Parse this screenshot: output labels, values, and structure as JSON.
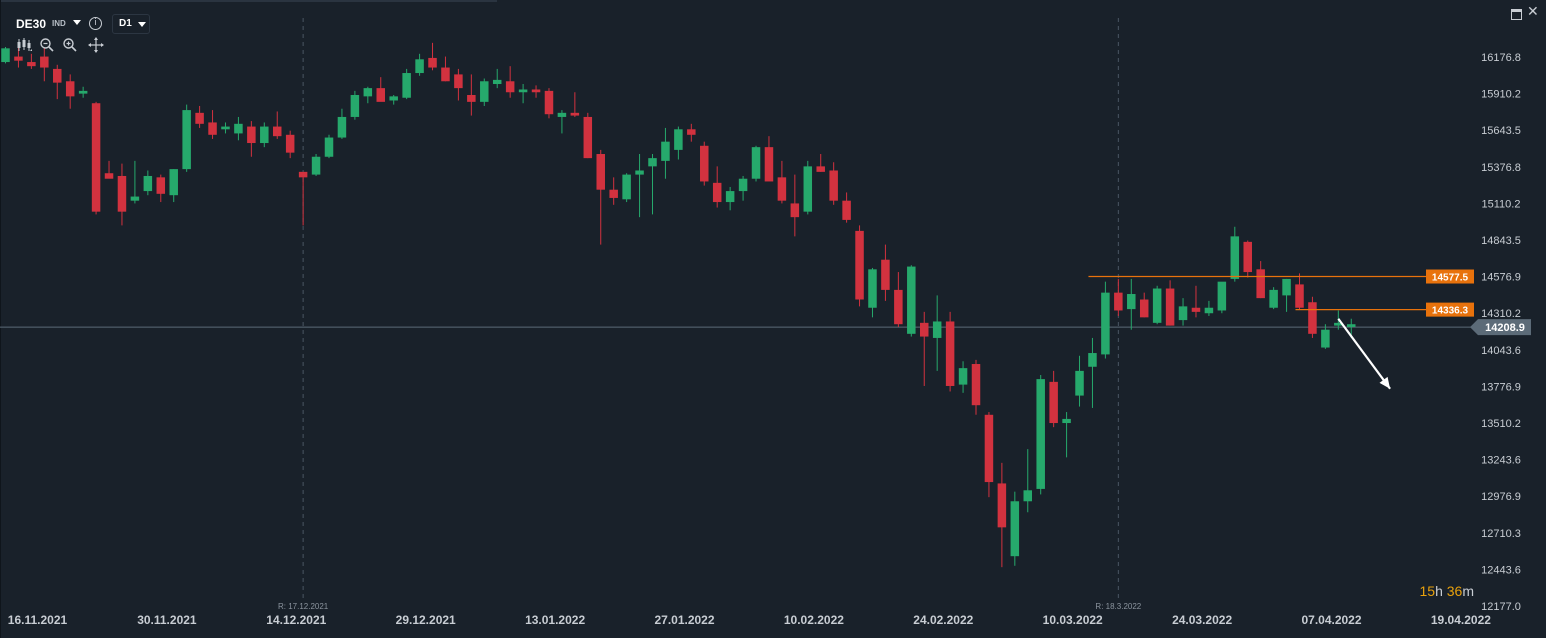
{
  "toolbar": {
    "symbol": "DE30",
    "market": "IND",
    "timeframe": "D1",
    "icons": [
      "chevron-down-icon",
      "info-icon",
      "candles-icon",
      "zoom-out-icon",
      "zoom-in-icon",
      "crosshair-move-icon",
      "window-icon",
      "close-icon"
    ]
  },
  "countdown": {
    "hours": "15",
    "h_unit": "h",
    "minutes": "36",
    "m_unit": "m"
  },
  "colors": {
    "background": "#19212a",
    "bull": "#26a96c",
    "bear": "#d2323f",
    "level": "#e8720c",
    "current": "#5c6b78",
    "text": "#c8cdd3",
    "countdown": "#e8a10c"
  },
  "chart_data": {
    "type": "candlestick",
    "symbol": "DE30",
    "timeframe": "D1",
    "ylim": [
      12177.0,
      16300.0
    ],
    "y_ticks": [
      "16176.8",
      "15910.2",
      "15643.5",
      "15376.8",
      "15110.2",
      "14843.5",
      "14576.9",
      "14310.2",
      "14043.6",
      "13776.9",
      "13510.2",
      "13243.6",
      "12976.9",
      "12710.3",
      "12443.6",
      "12177.0"
    ],
    "x_tick_labels": [
      "16.11.2021",
      "30.11.2021",
      "14.12.2021",
      "29.12.2021",
      "13.01.2022",
      "27.01.2022",
      "10.02.2022",
      "24.02.2022",
      "10.03.2022",
      "24.03.2022",
      "07.04.2022",
      "19.04.2022"
    ],
    "x_tick_index": [
      0,
      10,
      20,
      30,
      40,
      50,
      60,
      70,
      80,
      90,
      100,
      110
    ],
    "separators": [
      {
        "index": 23,
        "label": "R: 17.12.2021"
      },
      {
        "index": 86,
        "label": "R: 18.3.2022"
      }
    ],
    "levels": [
      {
        "value": 14577.5,
        "label": "14577.5",
        "from_index": 84
      },
      {
        "value": 14336.3,
        "label": "14336.3",
        "from_index": 100
      }
    ],
    "current_price": {
      "value": 14208.9,
      "label": "14208.9"
    },
    "arrow": {
      "from": {
        "index": 103,
        "value": 14270
      },
      "to": {
        "index": 107,
        "value": 13760
      }
    },
    "candles": [
      {
        "o": 16140,
        "h": 16250,
        "l": 16130,
        "c": 16240
      },
      {
        "o": 16180,
        "h": 16260,
        "l": 16100,
        "c": 16150
      },
      {
        "o": 16140,
        "h": 16200,
        "l": 16090,
        "c": 16110
      },
      {
        "o": 16180,
        "h": 16240,
        "l": 16000,
        "c": 16100
      },
      {
        "o": 16090,
        "h": 16120,
        "l": 15870,
        "c": 15990
      },
      {
        "o": 16000,
        "h": 16050,
        "l": 15800,
        "c": 15890
      },
      {
        "o": 15910,
        "h": 15960,
        "l": 15880,
        "c": 15930
      },
      {
        "o": 15840,
        "h": 15850,
        "l": 15030,
        "c": 15050
      },
      {
        "o": 15330,
        "h": 15420,
        "l": 15300,
        "c": 15290
      },
      {
        "o": 15310,
        "h": 15400,
        "l": 14950,
        "c": 15050
      },
      {
        "o": 15130,
        "h": 15420,
        "l": 15110,
        "c": 15160
      },
      {
        "o": 15200,
        "h": 15350,
        "l": 15170,
        "c": 15310
      },
      {
        "o": 15300,
        "h": 15320,
        "l": 15120,
        "c": 15180
      },
      {
        "o": 15170,
        "h": 15360,
        "l": 15120,
        "c": 15360
      },
      {
        "o": 15360,
        "h": 15830,
        "l": 15340,
        "c": 15790
      },
      {
        "o": 15770,
        "h": 15820,
        "l": 15660,
        "c": 15690
      },
      {
        "o": 15700,
        "h": 15790,
        "l": 15580,
        "c": 15610
      },
      {
        "o": 15650,
        "h": 15700,
        "l": 15620,
        "c": 15670
      },
      {
        "o": 15620,
        "h": 15740,
        "l": 15570,
        "c": 15690
      },
      {
        "o": 15670,
        "h": 15710,
        "l": 15450,
        "c": 15550
      },
      {
        "o": 15550,
        "h": 15700,
        "l": 15520,
        "c": 15670
      },
      {
        "o": 15670,
        "h": 15780,
        "l": 15580,
        "c": 15600
      },
      {
        "o": 15610,
        "h": 15640,
        "l": 15440,
        "c": 15480
      },
      {
        "o": 15340,
        "h": 15340,
        "l": 14950,
        "c": 15300
      },
      {
        "o": 15320,
        "h": 15470,
        "l": 15310,
        "c": 15450
      },
      {
        "o": 15450,
        "h": 15610,
        "l": 15440,
        "c": 15590
      },
      {
        "o": 15590,
        "h": 15800,
        "l": 15580,
        "c": 15740
      },
      {
        "o": 15740,
        "h": 15930,
        "l": 15720,
        "c": 15900
      },
      {
        "o": 15890,
        "h": 15960,
        "l": 15840,
        "c": 15950
      },
      {
        "o": 15950,
        "h": 16030,
        "l": 15860,
        "c": 15850
      },
      {
        "o": 15860,
        "h": 15900,
        "l": 15830,
        "c": 15890
      },
      {
        "o": 15880,
        "h": 16090,
        "l": 15870,
        "c": 16060
      },
      {
        "o": 16060,
        "h": 16200,
        "l": 16040,
        "c": 16160
      },
      {
        "o": 16170,
        "h": 16280,
        "l": 16080,
        "c": 16100
      },
      {
        "o": 16100,
        "h": 16180,
        "l": 16000,
        "c": 16000
      },
      {
        "o": 16050,
        "h": 16090,
        "l": 15860,
        "c": 15950
      },
      {
        "o": 15900,
        "h": 16050,
        "l": 15750,
        "c": 15850
      },
      {
        "o": 15850,
        "h": 16020,
        "l": 15820,
        "c": 16000
      },
      {
        "o": 15980,
        "h": 16090,
        "l": 15950,
        "c": 16010
      },
      {
        "o": 16000,
        "h": 16110,
        "l": 15880,
        "c": 15920
      },
      {
        "o": 15920,
        "h": 15980,
        "l": 15840,
        "c": 15940
      },
      {
        "o": 15940,
        "h": 15970,
        "l": 15880,
        "c": 15920
      },
      {
        "o": 15930,
        "h": 15950,
        "l": 15730,
        "c": 15760
      },
      {
        "o": 15740,
        "h": 15790,
        "l": 15620,
        "c": 15770
      },
      {
        "o": 15770,
        "h": 15920,
        "l": 15740,
        "c": 15750
      },
      {
        "o": 15740,
        "h": 15770,
        "l": 15440,
        "c": 15440
      },
      {
        "o": 15470,
        "h": 15500,
        "l": 14810,
        "c": 15210
      },
      {
        "o": 15210,
        "h": 15300,
        "l": 15100,
        "c": 15150
      },
      {
        "o": 15140,
        "h": 15330,
        "l": 15120,
        "c": 15320
      },
      {
        "o": 15320,
        "h": 15470,
        "l": 15010,
        "c": 15350
      },
      {
        "o": 15380,
        "h": 15470,
        "l": 15030,
        "c": 15440
      },
      {
        "o": 15420,
        "h": 15660,
        "l": 15290,
        "c": 15560
      },
      {
        "o": 15500,
        "h": 15670,
        "l": 15430,
        "c": 15650
      },
      {
        "o": 15650,
        "h": 15690,
        "l": 15560,
        "c": 15610
      },
      {
        "o": 15530,
        "h": 15560,
        "l": 15240,
        "c": 15270
      },
      {
        "o": 15260,
        "h": 15380,
        "l": 15080,
        "c": 15120
      },
      {
        "o": 15120,
        "h": 15230,
        "l": 15060,
        "c": 15200
      },
      {
        "o": 15200,
        "h": 15310,
        "l": 15130,
        "c": 15290
      },
      {
        "o": 15290,
        "h": 15530,
        "l": 15270,
        "c": 15520
      },
      {
        "o": 15520,
        "h": 15600,
        "l": 15290,
        "c": 15270
      },
      {
        "o": 15300,
        "h": 15420,
        "l": 15110,
        "c": 15130
      },
      {
        "o": 15110,
        "h": 15320,
        "l": 14870,
        "c": 15010
      },
      {
        "o": 15050,
        "h": 15420,
        "l": 15030,
        "c": 15380
      },
      {
        "o": 15380,
        "h": 15470,
        "l": 15340,
        "c": 15340
      },
      {
        "o": 15350,
        "h": 15410,
        "l": 15100,
        "c": 15130
      },
      {
        "o": 15130,
        "h": 15190,
        "l": 14970,
        "c": 14990
      },
      {
        "o": 14910,
        "h": 14950,
        "l": 14360,
        "c": 14410
      },
      {
        "o": 14350,
        "h": 14640,
        "l": 14280,
        "c": 14630
      },
      {
        "o": 14700,
        "h": 14810,
        "l": 14400,
        "c": 14480
      },
      {
        "o": 14480,
        "h": 14610,
        "l": 14210,
        "c": 14230
      },
      {
        "o": 14160,
        "h": 14660,
        "l": 14140,
        "c": 14650
      },
      {
        "o": 14240,
        "h": 14320,
        "l": 13780,
        "c": 14140
      },
      {
        "o": 14130,
        "h": 14440,
        "l": 13890,
        "c": 14250
      },
      {
        "o": 14250,
        "h": 14320,
        "l": 13740,
        "c": 13780
      },
      {
        "o": 13790,
        "h": 13960,
        "l": 13730,
        "c": 13910
      },
      {
        "o": 13940,
        "h": 13970,
        "l": 13570,
        "c": 13640
      },
      {
        "o": 13570,
        "h": 13590,
        "l": 12970,
        "c": 13080
      },
      {
        "o": 13070,
        "h": 13220,
        "l": 12460,
        "c": 12750
      },
      {
        "o": 12540,
        "h": 13010,
        "l": 12470,
        "c": 12940
      },
      {
        "o": 12940,
        "h": 13320,
        "l": 12860,
        "c": 13020
      },
      {
        "o": 13030,
        "h": 13860,
        "l": 12990,
        "c": 13830
      },
      {
        "o": 13810,
        "h": 13890,
        "l": 13480,
        "c": 13510
      },
      {
        "o": 13510,
        "h": 13590,
        "l": 13260,
        "c": 13540
      },
      {
        "o": 13710,
        "h": 14000,
        "l": 13630,
        "c": 13890
      },
      {
        "o": 13920,
        "h": 14130,
        "l": 13620,
        "c": 14020
      },
      {
        "o": 14010,
        "h": 14540,
        "l": 13980,
        "c": 14460
      },
      {
        "o": 14460,
        "h": 14560,
        "l": 14290,
        "c": 14330
      },
      {
        "o": 14340,
        "h": 14560,
        "l": 14190,
        "c": 14450
      },
      {
        "o": 14410,
        "h": 14460,
        "l": 14280,
        "c": 14280
      },
      {
        "o": 14240,
        "h": 14510,
        "l": 14230,
        "c": 14490
      },
      {
        "o": 14490,
        "h": 14550,
        "l": 14220,
        "c": 14220
      },
      {
        "o": 14260,
        "h": 14420,
        "l": 14220,
        "c": 14360
      },
      {
        "o": 14350,
        "h": 14510,
        "l": 14280,
        "c": 14320
      },
      {
        "o": 14310,
        "h": 14400,
        "l": 14290,
        "c": 14350
      },
      {
        "o": 14330,
        "h": 14530,
        "l": 14310,
        "c": 14540
      },
      {
        "o": 14560,
        "h": 14940,
        "l": 14540,
        "c": 14870
      },
      {
        "o": 14830,
        "h": 14840,
        "l": 14570,
        "c": 14610
      },
      {
        "o": 14630,
        "h": 14690,
        "l": 14420,
        "c": 14420
      },
      {
        "o": 14350,
        "h": 14500,
        "l": 14340,
        "c": 14480
      },
      {
        "o": 14440,
        "h": 14560,
        "l": 14320,
        "c": 14560
      },
      {
        "o": 14520,
        "h": 14600,
        "l": 14340,
        "c": 14350
      },
      {
        "o": 14390,
        "h": 14430,
        "l": 14130,
        "c": 14160
      },
      {
        "o": 14060,
        "h": 14230,
        "l": 14050,
        "c": 14190
      },
      {
        "o": 14220,
        "h": 14330,
        "l": 14190,
        "c": 14240
      },
      {
        "o": 14210,
        "h": 14270,
        "l": 14130,
        "c": 14230
      }
    ]
  }
}
